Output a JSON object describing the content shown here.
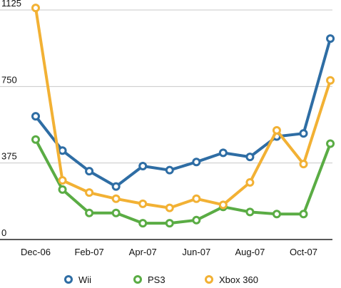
{
  "chart_data": {
    "type": "line",
    "title": "",
    "xlabel": "",
    "ylabel": "",
    "x": [
      "Dec-06",
      "Jan-07",
      "Feb-07",
      "Mar-07",
      "Apr-07",
      "May-07",
      "Jun-07",
      "Jul-07",
      "Aug-07",
      "Sep-07",
      "Oct-07",
      "Nov-07"
    ],
    "x_tick_labels": [
      "Dec-06",
      "Feb-07",
      "Apr-07",
      "Jun-07",
      "Aug-07",
      "Oct-07"
    ],
    "y_ticks": [
      0,
      375,
      750,
      1125
    ],
    "ylim": [
      0,
      1125
    ],
    "grid": true,
    "legend_position": "bottom",
    "series": [
      {
        "name": "Wii",
        "color": "#2e6da4",
        "values": [
          604,
          436,
          335,
          260,
          360,
          340,
          380,
          425,
          405,
          505,
          520,
          985
        ]
      },
      {
        "name": "PS3",
        "color": "#5aac44",
        "values": [
          490,
          245,
          130,
          130,
          80,
          80,
          95,
          160,
          135,
          125,
          125,
          470
        ]
      },
      {
        "name": "Xbox 360",
        "color": "#f2b134",
        "values": [
          1135,
          290,
          230,
          200,
          175,
          155,
          200,
          170,
          280,
          535,
          370,
          780
        ]
      }
    ]
  }
}
